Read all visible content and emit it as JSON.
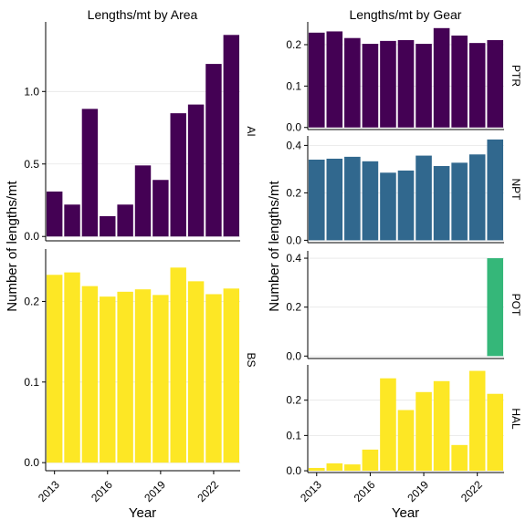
{
  "chart_data": [
    {
      "type": "bar",
      "title": "Lengths/mt by Area",
      "xlabel": "Year",
      "ylabel": "Number of lengths/mt",
      "x_ticks": [
        2013,
        2016,
        2019,
        2022
      ],
      "categories": [
        2013,
        2014,
        2015,
        2016,
        2017,
        2018,
        2019,
        2020,
        2021,
        2022,
        2023
      ],
      "panels": [
        {
          "label": "AI",
          "color": "#440154",
          "ylim": [
            -0.03,
            1.48
          ],
          "y_ticks": [
            0.0,
            0.5,
            1.0
          ],
          "y_tick_labels": [
            "0.0",
            "0.5",
            "1.0"
          ],
          "values": [
            0.31,
            0.22,
            0.88,
            0.14,
            0.22,
            0.49,
            0.39,
            0.85,
            0.91,
            1.19,
            1.39
          ]
        },
        {
          "label": "BS",
          "color": "#fde725",
          "ylim": [
            -0.01,
            0.265
          ],
          "y_ticks": [
            0.0,
            0.1,
            0.2
          ],
          "y_tick_labels": [
            "0.0",
            "0.1",
            "0.2"
          ],
          "values": [
            0.233,
            0.236,
            0.219,
            0.206,
            0.212,
            0.215,
            0.208,
            0.242,
            0.225,
            0.209,
            0.216
          ]
        }
      ]
    },
    {
      "type": "bar",
      "title": "Lengths/mt by Gear",
      "xlabel": "Year",
      "ylabel": "Number of lengths/mt",
      "x_ticks": [
        2013,
        2016,
        2019,
        2022
      ],
      "categories": [
        2013,
        2014,
        2015,
        2016,
        2017,
        2018,
        2019,
        2020,
        2021,
        2022,
        2023
      ],
      "panels": [
        {
          "label": "PTR",
          "color": "#440154",
          "ylim": [
            -0.005,
            0.255
          ],
          "y_ticks": [
            0.0,
            0.1,
            0.2
          ],
          "y_tick_labels": [
            "0.0",
            "0.1",
            "0.2"
          ],
          "values": [
            0.229,
            0.232,
            0.216,
            0.202,
            0.209,
            0.211,
            0.202,
            0.24,
            0.222,
            0.204,
            0.211
          ]
        },
        {
          "label": "NPT",
          "color": "#31688e",
          "ylim": [
            -0.01,
            0.44
          ],
          "y_ticks": [
            0.0,
            0.2,
            0.4
          ],
          "y_tick_labels": [
            "0.0",
            "0.2",
            "0.4"
          ],
          "values": [
            0.34,
            0.344,
            0.352,
            0.333,
            0.285,
            0.294,
            0.357,
            0.313,
            0.327,
            0.362,
            0.425
          ]
        },
        {
          "label": "POT",
          "color": "#35b779",
          "ylim": [
            -0.01,
            0.43
          ],
          "y_ticks": [
            0.0,
            0.2,
            0.4
          ],
          "y_tick_labels": [
            "0.0",
            "0.2",
            "0.4"
          ],
          "values": [
            null,
            null,
            null,
            null,
            null,
            null,
            null,
            null,
            null,
            null,
            0.4
          ]
        },
        {
          "label": "HAL",
          "color": "#fde725",
          "ylim": [
            -0.005,
            0.3
          ],
          "y_ticks": [
            0.0,
            0.1,
            0.2
          ],
          "y_tick_labels": [
            "0.0",
            "0.1",
            "0.2"
          ],
          "values": [
            0.008,
            0.021,
            0.018,
            0.06,
            0.262,
            0.172,
            0.223,
            0.254,
            0.073,
            0.283,
            0.218
          ]
        }
      ]
    }
  ]
}
